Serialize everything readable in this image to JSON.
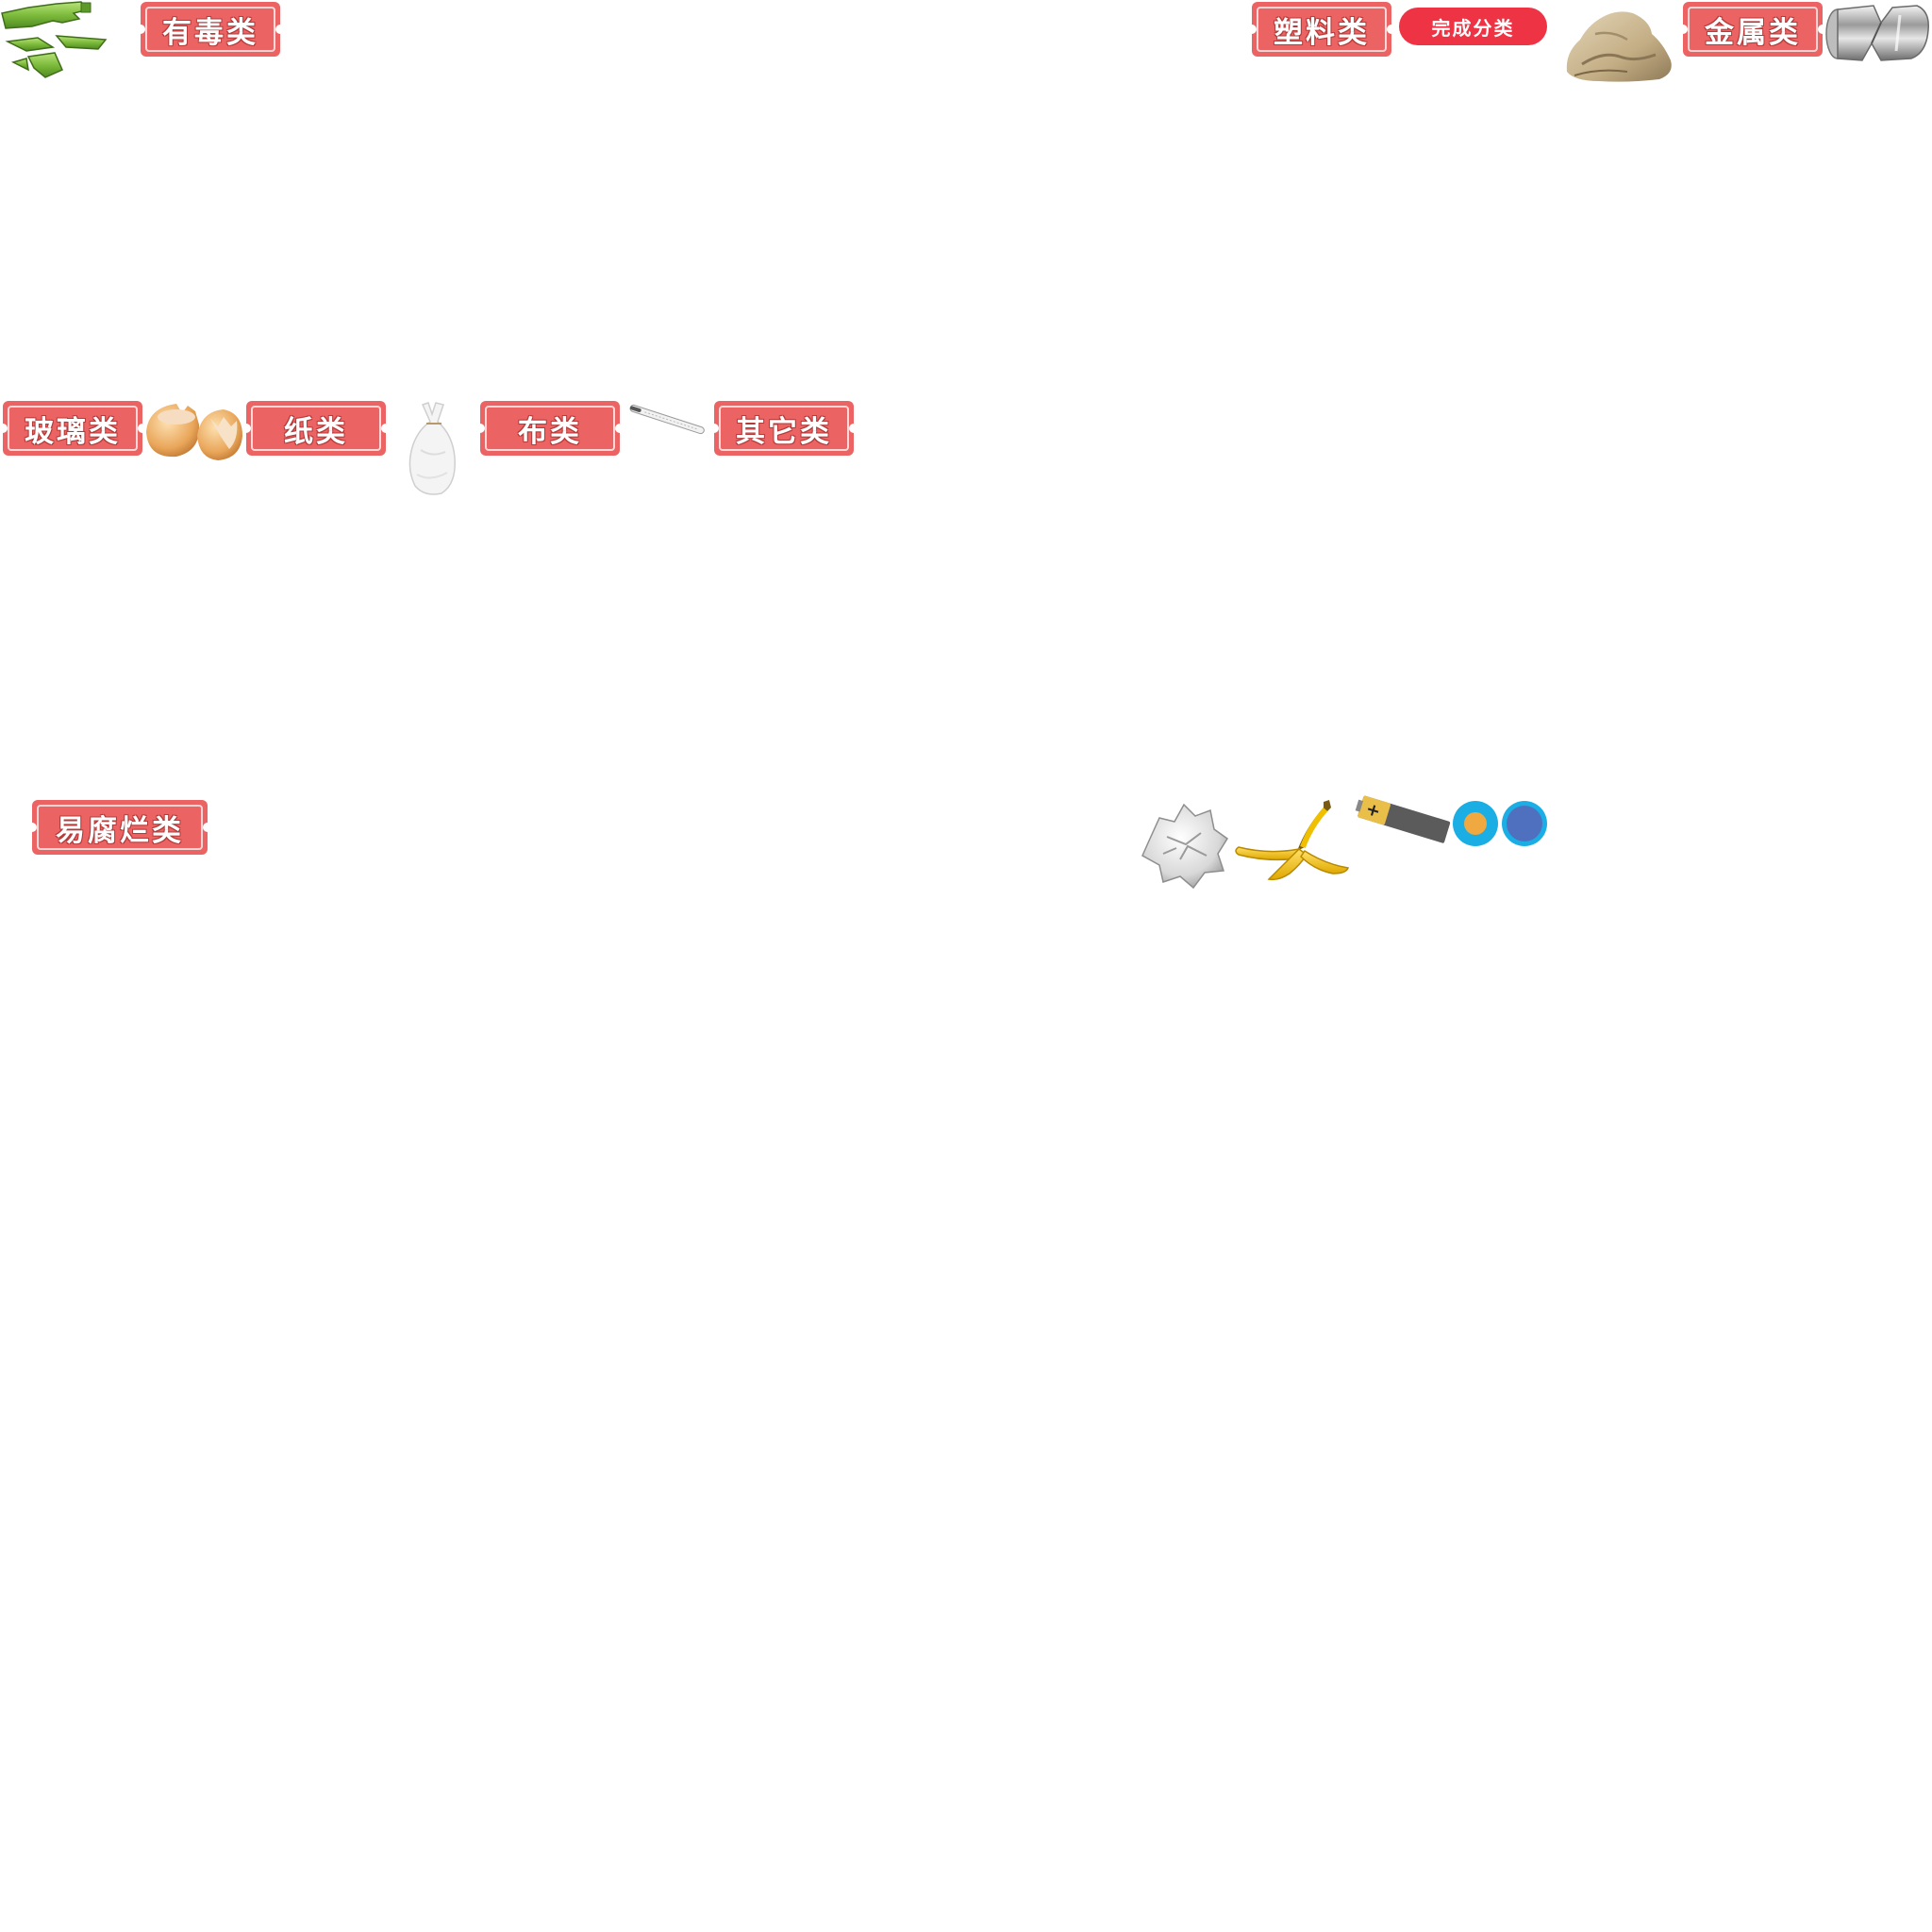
{
  "game": {
    "finish_button": "完成分类",
    "categories": {
      "toxic": "有毒类",
      "plastic": "塑料类",
      "metal": "金属类",
      "glass": "玻璃类",
      "paper": "纸类",
      "cloth": "布类",
      "other": "其它类",
      "perishable": "易腐烂类"
    },
    "battery_symbol": "+",
    "items": [
      "broken-glass-bottle-icon",
      "cloth-rag-icon",
      "crushed-can-icon",
      "eggshell-icon",
      "plastic-bag-icon",
      "thermometer-icon",
      "crumpled-paper-icon",
      "banana-peel-icon",
      "battery-icon",
      "button-battery-icon"
    ],
    "colors": {
      "label_bg": "#ec6363",
      "finish_bg": "#ee3344",
      "glass_green": "#7dbb3c",
      "banana_yellow": "#f5c400",
      "coin_cyan": "#1aaee5",
      "coin_orange": "#f0a940",
      "coin_blue": "#4f6fbf"
    }
  }
}
